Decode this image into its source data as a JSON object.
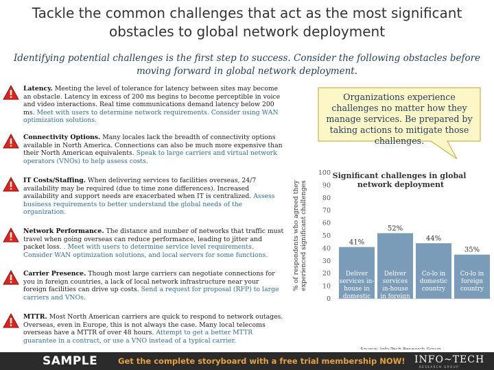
{
  "page": {
    "title": "Tackle the common challenges that act as the most significant obstacles to global network deployment",
    "subtitle": "Identifying potential challenges is the first step to success. Consider the following obstacles before moving forward in global network deployment."
  },
  "items": [
    {
      "icon": "warning-icon",
      "heading": "Latency.",
      "text": " Meeting the level of tolerance for latency between sites may become an obstacle. Latency in excess of 200 ms begins to become perceptible in voice and video interactions. Real time communications demand latency below 200 ms. ",
      "highlight": "Meet with users to determine network requirements. Consider using WAN optimization solutions."
    },
    {
      "icon": "warning-icon",
      "heading": "Connectivity Options.",
      "text": " Many locales lack the breadth of connectivity options available in North America. Connections can also be much more expensive than their North American equivalents. ",
      "highlight": "Speak to large carriers and virtual network operators (VNOs) to help assess costs."
    },
    {
      "icon": "warning-icon",
      "heading": "IT Costs/Staffing.",
      "text": " When delivering services to facilities overseas, 24/7 availability may be required (due to time zone differences). Increased availability and support needs are exacerbated when IT is centralized. ",
      "highlight": "Assess business requirements to better understand the global needs of the organization."
    },
    {
      "icon": "warning-icon",
      "heading": "Network Performance.",
      "text": " The distance and number of networks that traffic must travel when going overseas can reduce performance, leading to jitter and packet loss. ",
      "highlight": ". Meet with users to determine service level requirements. Consider WAN optimization solutions, and local servers for some functions."
    },
    {
      "icon": "warning-icon",
      "heading": "Carrier Presence.",
      "text": " Though most large carriers can negotiate connections for you in foreign countries, a lack of local network infrastructure near your foreign facilities can drive up costs. ",
      "highlight": "Send a request for proposal (RFP) to large carriers and VNOs."
    },
    {
      "icon": "warning-icon",
      "heading": "MTTR.",
      "text": " Most North American carriers are quick to respond to network outages. Overseas, even in Europe, this is not always the case. Many local telecoms overseas have a MTTR of over 48 hours. ",
      "highlight": "Attempt to get a better MTTR guarantee in a contract, or use a VNO instead of a typical carrier."
    }
  ],
  "callout": {
    "text": "Organizations experience challenges no matter how they manage services. Be prepared by taking actions to mitigate those challenges."
  },
  "chart_data": {
    "type": "bar",
    "title": "Significant challenges in global network deployment",
    "ylabel": "% of respondents who agreed they experienced significant challenges",
    "ylim": [
      0,
      100
    ],
    "yticks": [
      0,
      10,
      20,
      30,
      40,
      50,
      60,
      70,
      80,
      90,
      100
    ],
    "categories": [
      [
        "Deliver",
        "services in-",
        "house in",
        "domestic",
        "country"
      ],
      [
        "Deliver",
        "services",
        "in-house",
        "in foreign",
        "country"
      ],
      [
        "Co-lo in",
        "domestic",
        "country"
      ],
      [
        "Co-lo in",
        "foreign",
        "country"
      ]
    ],
    "values": [
      41,
      52,
      44,
      35
    ],
    "value_labels": [
      "41%",
      "52%",
      "44%",
      "35%"
    ],
    "bar_color": "#7a9cb8",
    "source": "Source: Info-Tech Research Group"
  },
  "footer": {
    "sample": "SAMPLE",
    "promo": "Get the complete storyboard with a free trial membership NOW!",
    "logo": "INFO~TECH",
    "logo_sub": "RESEARCH GROUP",
    "background": "#2b2b2b",
    "promo_color": "#e8a23c"
  },
  "colors": {
    "highlight": "#2e6f9e",
    "warning": "#e2231a",
    "callout_fill": "#fdf7c8",
    "callout_border": "#c9b54a"
  }
}
